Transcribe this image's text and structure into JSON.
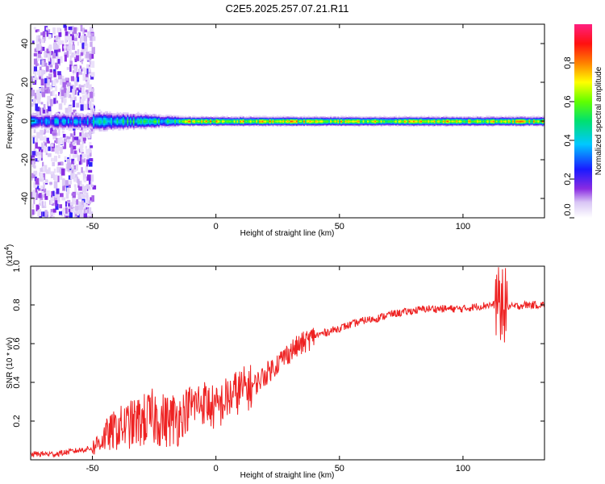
{
  "title": "C2E5.2025.257.07.21.R11",
  "colors": {
    "snr_line": "#ee2222",
    "axis": "#000000",
    "background": "#ffffff"
  },
  "chart_data": [
    {
      "type": "heatmap",
      "title": "C2E5.2025.257.07.21.R11",
      "xlabel": "Height of straight line (km)",
      "ylabel": "Frequency (Hz)",
      "xlim": [
        -75,
        133
      ],
      "ylim": [
        -50,
        50
      ],
      "x_ticks": [
        -50,
        0,
        50,
        100
      ],
      "y_ticks": [
        -40,
        -20,
        0,
        20,
        40
      ],
      "noise_region_x": [
        -75,
        -50
      ],
      "center_frequency": 0,
      "colorbar": {
        "label": "Normalized spectral amplitude",
        "range": [
          0,
          1
        ],
        "ticks": [
          "0.0",
          "0.2",
          "0.4",
          "0.6",
          "0.8"
        ],
        "colormap": "rainbow (white-purple-blue-cyan-green-yellow-orange-red-magenta)"
      }
    },
    {
      "type": "line",
      "xlabel": "Height of straight line (km)",
      "ylabel": "SNR (10 * v/v)",
      "scale_label": "(x10^4)",
      "scale_base": "(x10",
      "scale_exp": "4",
      "scale_close": ")",
      "xlim": [
        -75,
        133
      ],
      "ylim": [
        0,
        1.0
      ],
      "x_ticks": [
        -50,
        0,
        50,
        100
      ],
      "y_ticks": [
        0.2,
        0.4,
        0.6,
        0.8,
        1.0
      ],
      "y_tick_labels": [
        "0.2",
        "0.4",
        "0.6",
        "0.8",
        "1.0"
      ],
      "series": [
        {
          "name": "SNR",
          "x": [
            -75,
            -65,
            -55,
            -50,
            -45,
            -40,
            -35,
            -30,
            -25,
            -20,
            -15,
            -10,
            -5,
            0,
            5,
            10,
            15,
            20,
            25,
            30,
            35,
            40,
            45,
            50,
            55,
            60,
            65,
            70,
            75,
            80,
            85,
            90,
            95,
            100,
            105,
            110,
            115,
            120,
            125,
            133
          ],
          "y": [
            0.03,
            0.03,
            0.05,
            0.06,
            0.12,
            0.16,
            0.18,
            0.2,
            0.22,
            0.2,
            0.22,
            0.28,
            0.3,
            0.26,
            0.32,
            0.36,
            0.38,
            0.44,
            0.5,
            0.56,
            0.6,
            0.64,
            0.66,
            0.68,
            0.7,
            0.72,
            0.73,
            0.75,
            0.76,
            0.77,
            0.78,
            0.78,
            0.78,
            0.78,
            0.79,
            0.8,
            0.8,
            0.79,
            0.8,
            0.8
          ]
        }
      ]
    }
  ]
}
